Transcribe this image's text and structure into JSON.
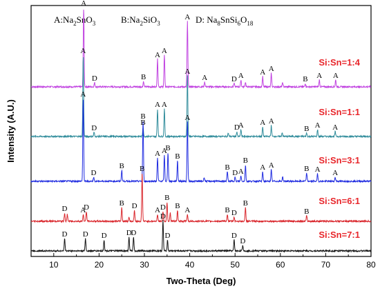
{
  "chart_data": {
    "type": "line",
    "xlabel": "Two-Theta (Deg)",
    "ylabel": "Intensity (A.U.)",
    "xlim": [
      5,
      80
    ],
    "xticks": [
      10,
      20,
      30,
      40,
      50,
      60,
      70,
      80
    ],
    "legend": {
      "A": "A:Na2SnO3",
      "B": "B:Na2SiO3",
      "D": "D: Na8SnSi6O18"
    },
    "series": [
      {
        "name": "Si:Sn=1:4",
        "color": "#c040e0",
        "peaks": [
          {
            "x": 16.6,
            "h": 115,
            "label": "A"
          },
          {
            "x": 19.0,
            "h": 6,
            "label": "D"
          },
          {
            "x": 29.8,
            "h": 8,
            "label": "B"
          },
          {
            "x": 32.9,
            "h": 40,
            "label": "A"
          },
          {
            "x": 34.4,
            "h": 46,
            "label": "A"
          },
          {
            "x": 39.5,
            "h": 95,
            "label": "A"
          },
          {
            "x": 43.3,
            "h": 7,
            "label": "A"
          },
          {
            "x": 49.8,
            "h": 5,
            "label": "D"
          },
          {
            "x": 51.3,
            "h": 10,
            "label": "A"
          },
          {
            "x": 52.3,
            "h": 7,
            "label": ""
          },
          {
            "x": 56.1,
            "h": 15,
            "label": "A"
          },
          {
            "x": 58.0,
            "h": 20,
            "label": "A"
          },
          {
            "x": 60.5,
            "h": 6,
            "label": ""
          },
          {
            "x": 65.5,
            "h": 5,
            "label": "B"
          },
          {
            "x": 68.6,
            "h": 10,
            "label": "A"
          },
          {
            "x": 72.2,
            "h": 10,
            "label": "A"
          }
        ]
      },
      {
        "name": "Si:Sn=1:1",
        "color": "#2e8b9a",
        "peaks": [
          {
            "x": 16.5,
            "h": 118,
            "label": "A"
          },
          {
            "x": 18.9,
            "h": 6,
            "label": "D"
          },
          {
            "x": 29.7,
            "h": 14,
            "label": "B"
          },
          {
            "x": 32.9,
            "h": 40,
            "label": "A"
          },
          {
            "x": 34.4,
            "h": 40,
            "label": "A"
          },
          {
            "x": 39.5,
            "h": 88,
            "label": "A"
          },
          {
            "x": 48.5,
            "h": 5,
            "label": ""
          },
          {
            "x": 50.4,
            "h": 7,
            "label": "D"
          },
          {
            "x": 51.3,
            "h": 10,
            "label": "A"
          },
          {
            "x": 56.1,
            "h": 14,
            "label": "A"
          },
          {
            "x": 58.0,
            "h": 16,
            "label": "A"
          },
          {
            "x": 60.4,
            "h": 6,
            "label": ""
          },
          {
            "x": 65.8,
            "h": 5,
            "label": "B"
          },
          {
            "x": 68.2,
            "h": 10,
            "label": "A"
          },
          {
            "x": 72.1,
            "h": 7,
            "label": "A"
          }
        ]
      },
      {
        "name": "Si:Sn=3:1",
        "color": "#1f2be0",
        "peaks": [
          {
            "x": 16.5,
            "h": 120,
            "label": "A"
          },
          {
            "x": 18.8,
            "h": 6,
            "label": "D"
          },
          {
            "x": 25.0,
            "h": 16,
            "label": "B"
          },
          {
            "x": 29.7,
            "h": 88,
            "label": "B"
          },
          {
            "x": 32.9,
            "h": 34,
            "label": "A"
          },
          {
            "x": 34.4,
            "h": 38,
            "label": "A"
          },
          {
            "x": 35.2,
            "h": 42,
            "label": "B"
          },
          {
            "x": 37.3,
            "h": 30,
            "label": "B"
          },
          {
            "x": 39.5,
            "h": 86,
            "label": "A"
          },
          {
            "x": 43.2,
            "h": 6,
            "label": ""
          },
          {
            "x": 48.3,
            "h": 14,
            "label": "B"
          },
          {
            "x": 50.0,
            "h": 6,
            "label": "D"
          },
          {
            "x": 51.3,
            "h": 8,
            "label": "A"
          },
          {
            "x": 52.3,
            "h": 24,
            "label": "B"
          },
          {
            "x": 56.1,
            "h": 14,
            "label": "A"
          },
          {
            "x": 58.0,
            "h": 17,
            "label": "A"
          },
          {
            "x": 60.5,
            "h": 6,
            "label": ""
          },
          {
            "x": 65.8,
            "h": 12,
            "label": "B"
          },
          {
            "x": 68.2,
            "h": 11,
            "label": "A"
          },
          {
            "x": 72.1,
            "h": 6,
            "label": "A"
          }
        ]
      },
      {
        "name": "Si:Sn=6:1",
        "color": "#d9242a",
        "peaks": [
          {
            "x": 12.4,
            "h": 12,
            "label": "D"
          },
          {
            "x": 13.0,
            "h": 10,
            "label": ""
          },
          {
            "x": 16.5,
            "h": 10,
            "label": "A"
          },
          {
            "x": 17.2,
            "h": 14,
            "label": "D"
          },
          {
            "x": 25.0,
            "h": 20,
            "label": "B"
          },
          {
            "x": 26.6,
            "h": 6,
            "label": ""
          },
          {
            "x": 27.8,
            "h": 16,
            "label": "D"
          },
          {
            "x": 29.5,
            "h": 70,
            "label": "B"
          },
          {
            "x": 32.9,
            "h": 10,
            "label": "A"
          },
          {
            "x": 34.1,
            "h": 14,
            "label": "D"
          },
          {
            "x": 35.0,
            "h": 28,
            "label": "B"
          },
          {
            "x": 35.7,
            "h": 12,
            "label": ""
          },
          {
            "x": 37.3,
            "h": 16,
            "label": "B"
          },
          {
            "x": 39.5,
            "h": 10,
            "label": "A"
          },
          {
            "x": 48.3,
            "h": 10,
            "label": "B"
          },
          {
            "x": 49.8,
            "h": 6,
            "label": "D"
          },
          {
            "x": 52.3,
            "h": 20,
            "label": "B"
          },
          {
            "x": 65.8,
            "h": 8,
            "label": "B"
          }
        ]
      },
      {
        "name": "Si:Sn=7:1",
        "color": "#111111",
        "peaks": [
          {
            "x": 12.4,
            "h": 18,
            "label": "D"
          },
          {
            "x": 17.0,
            "h": 18,
            "label": "D"
          },
          {
            "x": 21.1,
            "h": 16,
            "label": "D"
          },
          {
            "x": 26.6,
            "h": 20,
            "label": "D"
          },
          {
            "x": 27.6,
            "h": 20,
            "label": "D"
          },
          {
            "x": 34.1,
            "h": 44,
            "label": "D"
          },
          {
            "x": 35.1,
            "h": 16,
            "label": "D"
          },
          {
            "x": 49.8,
            "h": 16,
            "label": "D"
          },
          {
            "x": 51.7,
            "h": 8,
            "label": "D"
          }
        ]
      }
    ]
  }
}
